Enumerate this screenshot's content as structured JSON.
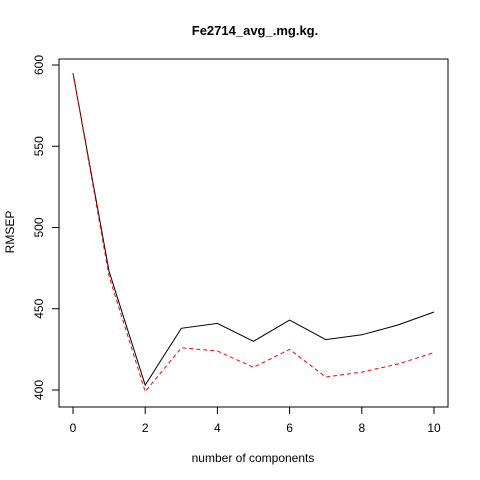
{
  "chart_data": {
    "type": "line",
    "title": "Fe2714_avg_.mg.kg.",
    "xlabel": "number of components",
    "ylabel": "RMSEP",
    "xlim": [
      0,
      10
    ],
    "ylim": [
      398,
      604
    ],
    "x_ticks": [
      0,
      2,
      4,
      6,
      8,
      10
    ],
    "y_ticks": [
      400,
      450,
      500,
      550,
      600
    ],
    "x": [
      0,
      1,
      2,
      3,
      4,
      5,
      6,
      7,
      8,
      9,
      10
    ],
    "series": [
      {
        "style": "solid",
        "color": "#000000",
        "values": [
          595,
          473,
          403,
          438,
          441,
          430,
          443,
          431,
          434,
          440,
          448
        ]
      },
      {
        "style": "dashed",
        "color": "#ff0000",
        "values": [
          595,
          470,
          399,
          426,
          424,
          414,
          425,
          408,
          411,
          416,
          423
        ]
      }
    ],
    "grid": false,
    "legend": "none"
  }
}
